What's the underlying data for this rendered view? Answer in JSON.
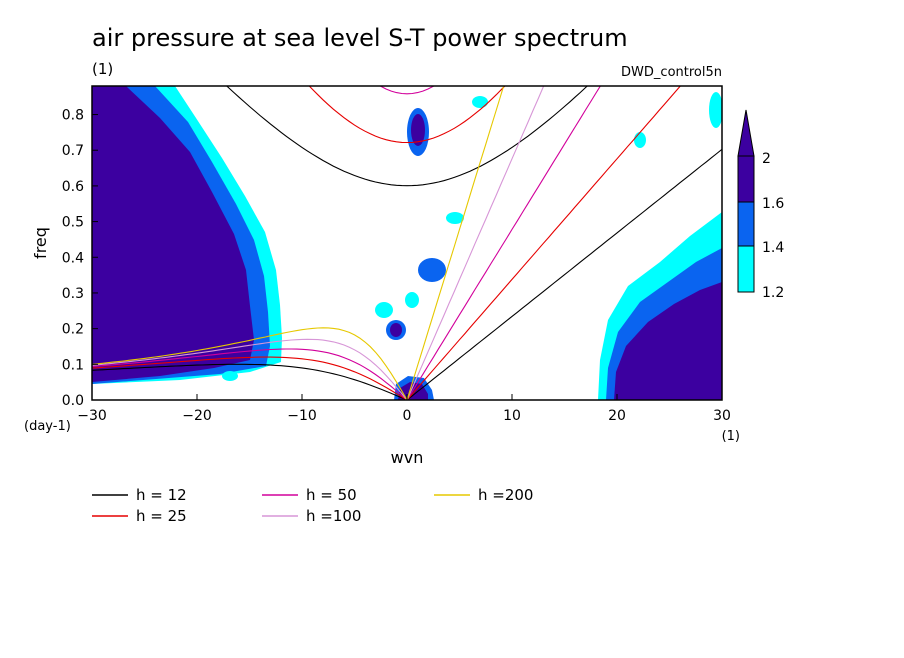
{
  "chart_data": {
    "type": "heatmap",
    "title": "air pressure at sea level S-T power spectrum",
    "subtitle_left": "(1)",
    "subtitle_right": "DWD_control5n",
    "xlabel": "wvn",
    "ylabel": "freq",
    "x_unit": "(1)",
    "y_unit": "(day-1)",
    "xlim": [
      -30,
      30
    ],
    "ylim": [
      0,
      0.88
    ],
    "xticks": [
      -30,
      -20,
      -10,
      0,
      10,
      20,
      30
    ],
    "xtick_labels": [
      "−30",
      "−20",
      "−10",
      "0",
      "10",
      "20",
      "30"
    ],
    "yticks": [
      0.0,
      0.1,
      0.2,
      0.3,
      0.4,
      0.5,
      0.6,
      0.7,
      0.8
    ],
    "ytick_labels": [
      "0.0",
      "0.1",
      "0.2",
      "0.3",
      "0.4",
      "0.5",
      "0.6",
      "0.7",
      "0.8"
    ],
    "colorbar": {
      "levels": [
        "1.2",
        "1.4",
        "1.6",
        "2"
      ],
      "colors": [
        "#00ffff",
        "#0a64f0",
        "#3c00a0",
        "#3c00a0"
      ]
    },
    "contour_regions": [
      {
        "name": "left-block",
        "x": [
          -30,
          -17.5
        ],
        "y": [
          0.05,
          0.88
        ],
        "level": 2
      },
      {
        "name": "right-block",
        "x": [
          21,
          30
        ],
        "y": [
          0.0,
          0.33
        ],
        "level": 2
      },
      {
        "name": "center-spot",
        "x": [
          -0.5,
          2
        ],
        "y": [
          0.0,
          0.05
        ],
        "level": 2
      },
      {
        "name": "center-upper",
        "x": [
          0.5,
          2
        ],
        "y": [
          0.62,
          0.8
        ],
        "level": 1.6
      }
    ],
    "legend": {
      "entries": [
        {
          "label": "h = 12",
          "color": "#000000"
        },
        {
          "label": "h = 25",
          "color": "#e60000"
        },
        {
          "label": "h = 50",
          "color": "#d2009b"
        },
        {
          "label": "h =100",
          "color": "#d796d7"
        },
        {
          "label": "h =200",
          "color": "#e6c800"
        }
      ],
      "placement": "below"
    },
    "equivalent_depths": [
      12,
      25,
      50,
      100,
      200
    ]
  }
}
